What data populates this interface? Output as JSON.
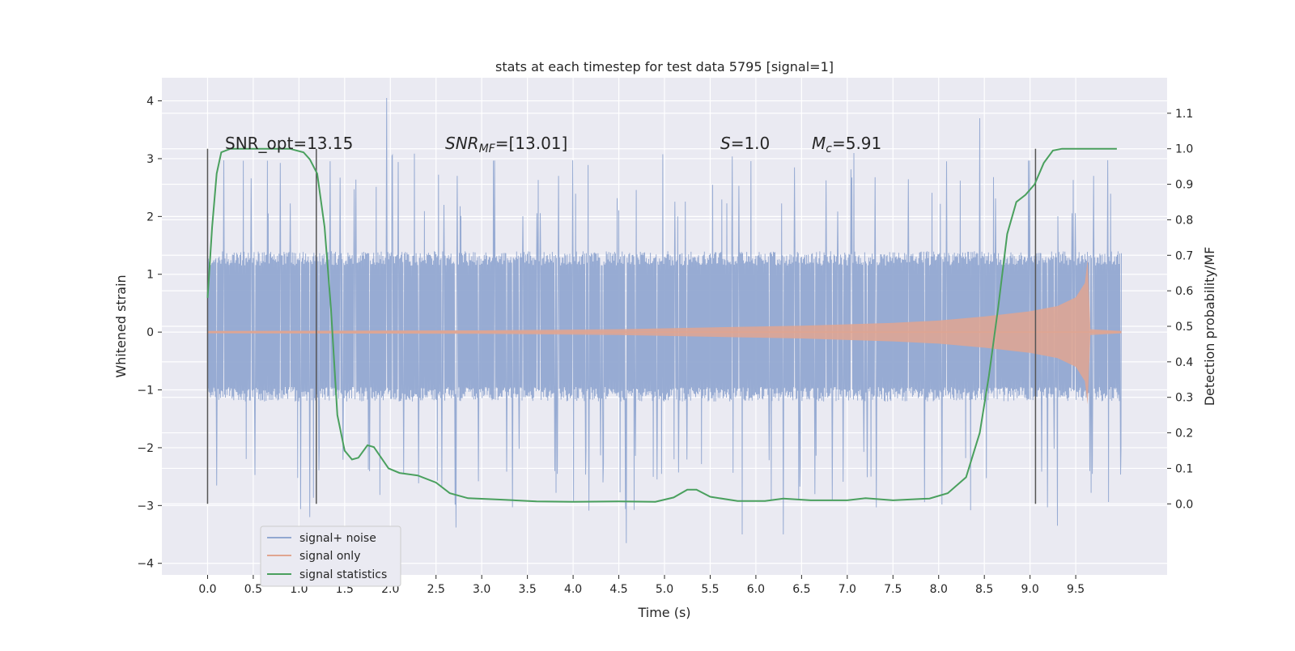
{
  "chart_data": {
    "type": "line",
    "title": "stats at each timestep for test data 5795 [signal=1]",
    "xlabel": "Time (s)",
    "ylabel_left": "Whitened strain",
    "ylabel_right": "Detection probability/MF",
    "xlim": [
      -0.5,
      10.5
    ],
    "ylim_left": [
      -4.2,
      4.4
    ],
    "ylim_right": [
      -0.2,
      1.2
    ],
    "x_ticks": [
      "0.0",
      "0.5",
      "1.0",
      "1.5",
      "2.0",
      "2.5",
      "3.0",
      "3.5",
      "4.0",
      "4.5",
      "5.0",
      "5.5",
      "6.0",
      "6.5",
      "7.0",
      "7.5",
      "8.0",
      "8.5",
      "9.0",
      "9.5"
    ],
    "y_ticks_left": [
      "4",
      "3",
      "2",
      "1",
      "0",
      "−1",
      "−2",
      "−3",
      "−4"
    ],
    "y_ticks_right": [
      "1.1",
      "1.0",
      "0.9",
      "0.8",
      "0.7",
      "0.6",
      "0.5",
      "0.4",
      "0.3",
      "0.2",
      "0.1",
      "0.0"
    ],
    "grid": true,
    "legend": {
      "placement": "lower-left",
      "entries": [
        "signal+ noise",
        "signal only",
        "signal statistics"
      ]
    },
    "annotations": {
      "snr_opt": "SNR_opt=13.15",
      "snr_mf_label": "SNR",
      "snr_mf_sub": "MF",
      "snr_mf_value": "=[13.01]",
      "s_label": "S",
      "s_value": "=1.0",
      "mc_label": "M",
      "mc_sub": "c",
      "mc_value": "=5.91"
    },
    "vertical_markers_x": [
      0.0,
      1.19,
      9.06
    ],
    "marker_span_right": [
      0.0,
      1.0
    ],
    "series": [
      {
        "name": "signal+ noise",
        "color": "#92a8d1",
        "description_range": [
          0.0,
          10.0
        ],
        "typical_band": [
          -1.2,
          1.4
        ],
        "spikes": [
          [
            1.96,
            4.05
          ],
          [
            8.45,
            3.7
          ],
          [
            4.58,
            -3.65
          ],
          [
            6.3,
            -3.5
          ],
          [
            2.72,
            -3.38
          ],
          [
            5.85,
            -3.5
          ],
          [
            9.3,
            -3.35
          ],
          [
            1.12,
            -3.2
          ]
        ]
      },
      {
        "name": "signal only",
        "color": "#e0a590",
        "envelope": [
          [
            0.0,
            0.02
          ],
          [
            3.0,
            0.03
          ],
          [
            4.5,
            0.05
          ],
          [
            5.5,
            0.08
          ],
          [
            6.5,
            0.11
          ],
          [
            7.5,
            0.16
          ],
          [
            8.0,
            0.2
          ],
          [
            8.5,
            0.27
          ],
          [
            9.0,
            0.36
          ],
          [
            9.3,
            0.45
          ],
          [
            9.5,
            0.6
          ],
          [
            9.6,
            0.85
          ],
          [
            9.63,
            1.25
          ],
          [
            9.66,
            0.05
          ],
          [
            10.0,
            0.02
          ]
        ]
      },
      {
        "name": "signal statistics",
        "color": "#4aa05e",
        "points": [
          [
            0.0,
            0.58
          ],
          [
            0.05,
            0.78
          ],
          [
            0.1,
            0.93
          ],
          [
            0.15,
            0.99
          ],
          [
            0.25,
            1.0
          ],
          [
            0.9,
            1.0
          ],
          [
            1.05,
            0.99
          ],
          [
            1.12,
            0.97
          ],
          [
            1.2,
            0.93
          ],
          [
            1.28,
            0.78
          ],
          [
            1.35,
            0.55
          ],
          [
            1.42,
            0.25
          ],
          [
            1.5,
            0.15
          ],
          [
            1.58,
            0.125
          ],
          [
            1.65,
            0.13
          ],
          [
            1.75,
            0.165
          ],
          [
            1.82,
            0.16
          ],
          [
            1.9,
            0.13
          ],
          [
            1.98,
            0.1
          ],
          [
            2.1,
            0.087
          ],
          [
            2.3,
            0.08
          ],
          [
            2.5,
            0.06
          ],
          [
            2.65,
            0.03
          ],
          [
            2.85,
            0.016
          ],
          [
            3.2,
            0.012
          ],
          [
            3.6,
            0.007
          ],
          [
            4.0,
            0.006
          ],
          [
            4.5,
            0.007
          ],
          [
            4.9,
            0.006
          ],
          [
            5.1,
            0.018
          ],
          [
            5.25,
            0.04
          ],
          [
            5.35,
            0.04
          ],
          [
            5.5,
            0.02
          ],
          [
            5.8,
            0.008
          ],
          [
            6.1,
            0.008
          ],
          [
            6.3,
            0.015
          ],
          [
            6.6,
            0.01
          ],
          [
            7.0,
            0.01
          ],
          [
            7.2,
            0.016
          ],
          [
            7.5,
            0.01
          ],
          [
            7.9,
            0.015
          ],
          [
            8.1,
            0.03
          ],
          [
            8.3,
            0.075
          ],
          [
            8.45,
            0.2
          ],
          [
            8.55,
            0.36
          ],
          [
            8.65,
            0.55
          ],
          [
            8.75,
            0.76
          ],
          [
            8.85,
            0.85
          ],
          [
            8.95,
            0.87
          ],
          [
            9.05,
            0.9
          ],
          [
            9.15,
            0.96
          ],
          [
            9.25,
            0.995
          ],
          [
            9.35,
            1.0
          ],
          [
            9.95,
            1.0
          ]
        ]
      }
    ]
  }
}
